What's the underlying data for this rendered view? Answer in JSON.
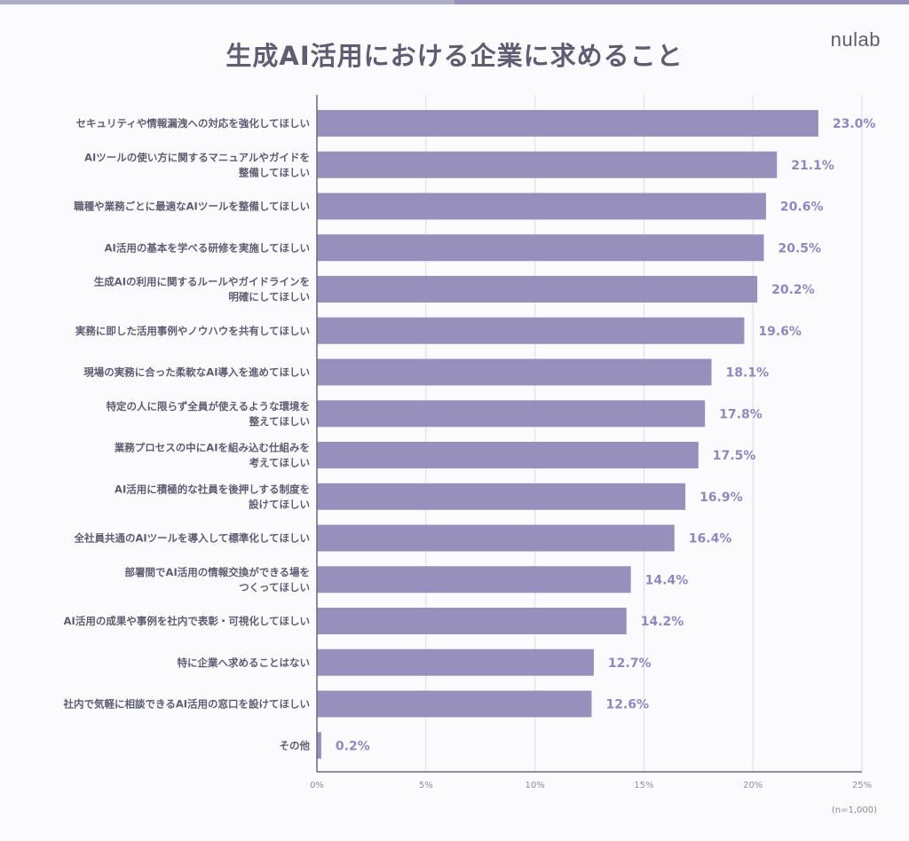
{
  "title": "生成AI活用における企業に求めること",
  "logo": "nulab",
  "note": "(n=1,000)",
  "colors": {
    "bar": "#9790bd",
    "value_label": "#8f88bf",
    "text": "#5f5d72"
  },
  "chart_data": {
    "type": "bar",
    "orientation": "horizontal",
    "title": "生成AI活用における企業に求めること",
    "categories": [
      [
        "セキュリティや情報漏洩への対応を強化してほしい"
      ],
      [
        "AIツールの使い方に関するマニュアルやガイドを",
        "整備してほしい"
      ],
      [
        "職種や業務ごとに最適なAIツールを整備してほしい"
      ],
      [
        "AI活用の基本を学べる研修を実施してほしい"
      ],
      [
        "生成AIの利用に関するルールやガイドラインを",
        "明確にしてほしい"
      ],
      [
        "実務に即した活用事例やノウハウを共有してほしい"
      ],
      [
        "現場の実務に合った柔軟なAI導入を進めてほしい"
      ],
      [
        "特定の人に限らず全員が使えるような環境を",
        "整えてほしい"
      ],
      [
        "業務プロセスの中にAIを組み込む仕組みを",
        "考えてほしい"
      ],
      [
        "AI活用に積極的な社員を後押しする制度を",
        "設けてほしい"
      ],
      [
        "全社員共通のAIツールを導入して標準化してほしい"
      ],
      [
        "部署間でAI活用の情報交換ができる場を",
        "つくってほしい"
      ],
      [
        "AI活用の成果や事例を社内で表彰・可視化してほしい"
      ],
      [
        "特に企業へ求めることはない"
      ],
      [
        "社内で気軽に相談できるAI活用の窓口を設けてほしい"
      ],
      [
        "その他"
      ]
    ],
    "values": [
      23.0,
      21.1,
      20.6,
      20.5,
      20.2,
      19.6,
      18.1,
      17.8,
      17.5,
      16.9,
      16.4,
      14.4,
      14.2,
      12.7,
      12.6,
      0.2
    ],
    "value_labels": [
      "23.0%",
      "21.1%",
      "20.6%",
      "20.5%",
      "20.2%",
      "19.6%",
      "18.1%",
      "17.8%",
      "17.5%",
      "16.9%",
      "16.4%",
      "14.4%",
      "14.2%",
      "12.7%",
      "12.6%",
      "0.2%"
    ],
    "xlim": [
      0,
      25
    ],
    "xticks": [
      0,
      5,
      10,
      15,
      20,
      25
    ],
    "xtick_labels": [
      "0%",
      "5%",
      "10%",
      "15%",
      "20%",
      "25%"
    ],
    "grid": true,
    "legend": "none"
  }
}
